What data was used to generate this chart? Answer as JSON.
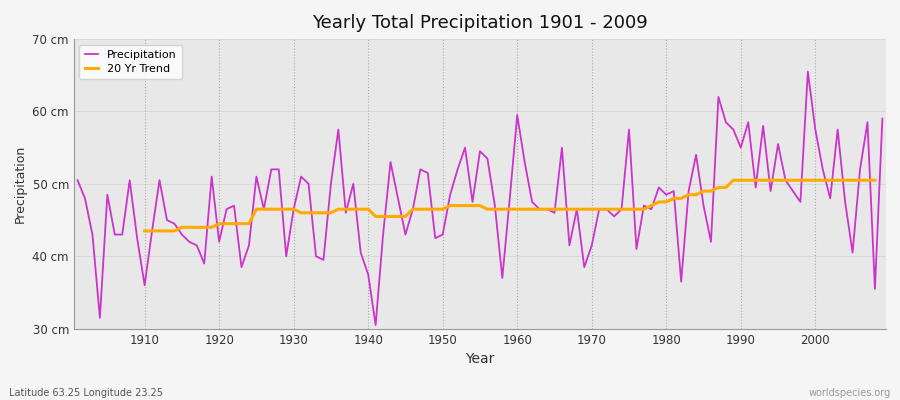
{
  "title": "Yearly Total Precipitation 1901 - 2009",
  "xlabel": "Year",
  "ylabel": "Precipitation",
  "subtitle": "Latitude 63.25 Longitude 23.25",
  "watermark": "worldspecies.org",
  "ylim": [
    30,
    70
  ],
  "yticks": [
    30,
    40,
    50,
    60,
    70
  ],
  "ytick_labels": [
    "30 cm",
    "40 cm",
    "50 cm",
    "60 cm",
    "70 cm"
  ],
  "fig_bg_color": "#f5f5f5",
  "plot_bg_color": "#e8e8e8",
  "precip_color": "#cc33cc",
  "trend_color": "#ffaa00",
  "years": [
    1901,
    1902,
    1903,
    1904,
    1905,
    1906,
    1907,
    1908,
    1909,
    1910,
    1911,
    1912,
    1913,
    1914,
    1915,
    1916,
    1917,
    1918,
    1919,
    1920,
    1921,
    1922,
    1923,
    1924,
    1925,
    1926,
    1927,
    1928,
    1929,
    1930,
    1931,
    1932,
    1933,
    1934,
    1935,
    1936,
    1937,
    1938,
    1939,
    1940,
    1941,
    1942,
    1943,
    1944,
    1945,
    1946,
    1947,
    1948,
    1949,
    1950,
    1951,
    1952,
    1953,
    1954,
    1955,
    1956,
    1957,
    1958,
    1959,
    1960,
    1961,
    1962,
    1963,
    1964,
    1965,
    1966,
    1967,
    1968,
    1969,
    1970,
    1971,
    1972,
    1973,
    1974,
    1975,
    1976,
    1977,
    1978,
    1979,
    1980,
    1981,
    1982,
    1983,
    1984,
    1985,
    1986,
    1987,
    1988,
    1989,
    1990,
    1991,
    1992,
    1993,
    1994,
    1995,
    1996,
    1997,
    1998,
    1999,
    2000,
    2001,
    2002,
    2003,
    2004,
    2005,
    2006,
    2007,
    2008,
    2009
  ],
  "precip": [
    50.5,
    48.0,
    43.0,
    31.5,
    48.5,
    43.0,
    43.0,
    50.5,
    42.5,
    36.0,
    43.5,
    50.5,
    45.0,
    44.5,
    43.0,
    42.0,
    41.5,
    39.0,
    51.0,
    42.0,
    46.5,
    47.0,
    38.5,
    41.5,
    51.0,
    46.5,
    52.0,
    52.0,
    40.0,
    46.5,
    51.0,
    50.0,
    40.0,
    39.5,
    50.0,
    57.5,
    46.0,
    50.0,
    40.5,
    37.5,
    30.5,
    43.0,
    53.0,
    48.0,
    43.0,
    46.5,
    52.0,
    51.5,
    42.5,
    43.0,
    48.5,
    52.0,
    55.0,
    47.5,
    54.5,
    53.5,
    47.0,
    37.0,
    48.0,
    59.5,
    53.0,
    47.5,
    46.5,
    46.5,
    46.0,
    55.0,
    41.5,
    46.5,
    38.5,
    41.5,
    46.5,
    46.5,
    45.5,
    46.5,
    57.5,
    41.0,
    47.0,
    46.5,
    49.5,
    48.5,
    49.0,
    36.5,
    49.0,
    54.0,
    47.0,
    42.0,
    62.0,
    58.5,
    57.5,
    55.0,
    58.5,
    49.5,
    58.0,
    49.0,
    55.5,
    50.5,
    49.0,
    47.5,
    65.5,
    57.5,
    52.0,
    48.0,
    57.5,
    47.5,
    40.5,
    52.0,
    58.5,
    35.5,
    59.0
  ],
  "trend": [
    null,
    null,
    null,
    null,
    null,
    null,
    null,
    null,
    null,
    43.5,
    43.5,
    43.5,
    43.5,
    43.5,
    44.0,
    44.0,
    44.0,
    44.0,
    44.0,
    44.5,
    44.5,
    44.5,
    44.5,
    44.5,
    46.5,
    46.5,
    46.5,
    46.5,
    46.5,
    46.5,
    46.0,
    46.0,
    46.0,
    46.0,
    46.0,
    46.5,
    46.5,
    46.5,
    46.5,
    46.5,
    45.5,
    45.5,
    45.5,
    45.5,
    45.5,
    46.5,
    46.5,
    46.5,
    46.5,
    46.5,
    47.0,
    47.0,
    47.0,
    47.0,
    47.0,
    46.5,
    46.5,
    46.5,
    46.5,
    46.5,
    46.5,
    46.5,
    46.5,
    46.5,
    46.5,
    46.5,
    46.5,
    46.5,
    46.5,
    46.5,
    46.5,
    46.5,
    46.5,
    46.5,
    46.5,
    46.5,
    46.5,
    47.0,
    47.5,
    47.5,
    48.0,
    48.0,
    48.5,
    48.5,
    49.0,
    49.0,
    49.5,
    49.5,
    50.5,
    50.5,
    50.5,
    50.5,
    50.5,
    50.5,
    50.5,
    50.5,
    50.5,
    50.5,
    50.5,
    50.5,
    50.5,
    50.5,
    50.5,
    50.5,
    50.5,
    50.5,
    50.5,
    50.5
  ]
}
